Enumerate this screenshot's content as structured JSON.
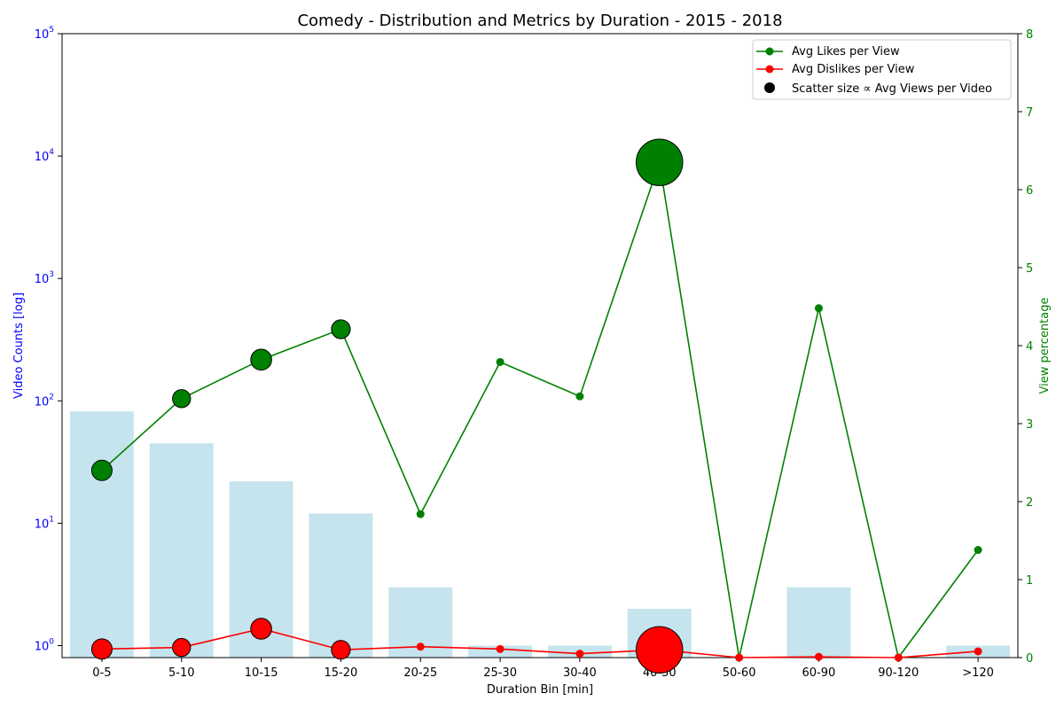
{
  "chart_data": {
    "type": "bar",
    "title": "Comedy - Distribution and Metrics by Duration - 2015 - 2018",
    "xlabel": "Duration Bin [min]",
    "ylabel_left": "Video Counts [log]",
    "ylabel_right": "View percentage",
    "categories": [
      "0-5",
      "5-10",
      "10-15",
      "15-20",
      "20-25",
      "25-30",
      "30-40",
      "40-50",
      "50-60",
      "60-90",
      "90-120",
      ">120"
    ],
    "y_left_scale": "log",
    "y_left_ticks": [
      {
        "base": "10",
        "exp": "0"
      },
      {
        "base": "10",
        "exp": "1"
      },
      {
        "base": "10",
        "exp": "2"
      },
      {
        "base": "10",
        "exp": "3"
      },
      {
        "base": "10",
        "exp": "4"
      },
      {
        "base": "10",
        "exp": "5"
      }
    ],
    "y_right_ticks": [
      "0",
      "1",
      "2",
      "3",
      "4",
      "5",
      "6",
      "7",
      "8"
    ],
    "ylim_right": [
      0,
      8
    ],
    "video_counts": [
      82,
      45,
      22,
      12,
      3,
      1,
      1,
      2,
      0,
      3,
      0,
      1
    ],
    "bar_color": "#add8e6",
    "series": [
      {
        "name": "Avg Likes per View",
        "color": "#008000",
        "values": [
          2.4,
          3.32,
          3.82,
          4.21,
          1.84,
          3.79,
          3.35,
          6.35,
          0.0,
          4.48,
          0.0,
          1.38
        ],
        "scatter_visible": [
          true,
          true,
          true,
          true,
          false,
          false,
          false,
          true,
          false,
          false,
          false,
          false
        ]
      },
      {
        "name": "Avg Dislikes per View",
        "color": "#ff0000",
        "values": [
          0.11,
          0.13,
          0.37,
          0.1,
          0.14,
          0.11,
          0.05,
          0.1,
          0.0,
          0.01,
          0.0,
          0.08
        ],
        "scatter_visible": [
          true,
          true,
          true,
          true,
          false,
          false,
          false,
          true,
          false,
          false,
          false,
          false
        ]
      }
    ],
    "scatter_size_relative": [
      1.0,
      0.78,
      1.05,
      0.85,
      0,
      0,
      0,
      5.2,
      0,
      0,
      0,
      0
    ],
    "legend": {
      "position": "top-right",
      "entries": [
        "Avg Likes per View",
        "Avg Dislikes per View",
        "Scatter size ∝ Avg Views per Video"
      ]
    }
  }
}
